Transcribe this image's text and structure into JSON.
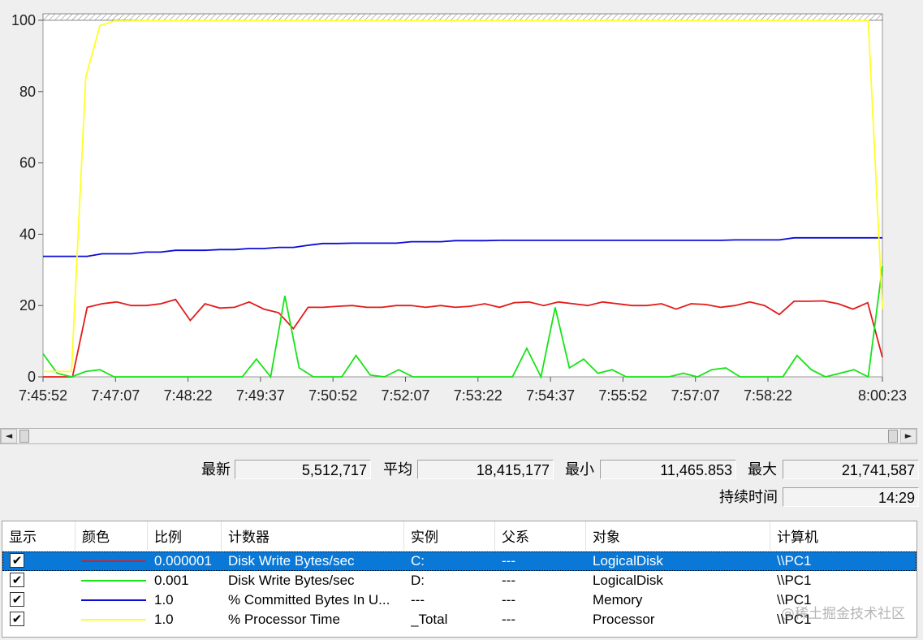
{
  "colors": {
    "red": "#e31b1b",
    "green": "#17e317",
    "blue": "#0b0bd8",
    "yellow": "#ffff22",
    "grid": "#999999",
    "selection": "#0a78d7"
  },
  "chart_data": {
    "type": "line",
    "ylim": [
      0,
      100
    ],
    "y_ticks": [
      "0",
      "20",
      "40",
      "60",
      "80",
      "100"
    ],
    "x_ticks": [
      "7:45:52",
      "7:47:07",
      "7:48:22",
      "7:49:37",
      "7:50:52",
      "7:52:07",
      "7:53:22",
      "7:54:37",
      "7:55:52",
      "7:57:07",
      "7:58:22",
      "8:00:23"
    ],
    "grid": false,
    "series": [
      {
        "color": "red",
        "values": [
          0,
          0,
          0,
          19.5,
          20.5,
          21,
          20,
          20,
          20.5,
          21.7,
          15.8,
          20.5,
          19.3,
          19.5,
          21,
          19,
          18,
          13.5,
          19.5,
          19.5,
          19.8,
          20,
          19.5,
          19.5,
          20,
          20,
          19.5,
          20,
          19.5,
          19.8,
          20.5,
          19.5,
          20.8,
          21,
          20,
          21,
          20.5,
          20,
          21,
          20.5,
          20,
          20,
          20.5,
          19,
          20.5,
          20.3,
          19.5,
          20,
          21,
          20,
          17.5,
          21.2,
          21.2,
          21.3,
          20.5,
          19,
          20.8,
          5.5
        ]
      },
      {
        "color": "green",
        "values": [
          6.5,
          1,
          0,
          1.5,
          2,
          0,
          0,
          0,
          0,
          0,
          0,
          0,
          0,
          0,
          0,
          5,
          0,
          22.7,
          2.5,
          0,
          0,
          0,
          6,
          0.5,
          0,
          2,
          0,
          0,
          0,
          0,
          0,
          0,
          0,
          0,
          8,
          0,
          19.5,
          2.5,
          5,
          1,
          2,
          0,
          0,
          0,
          0,
          1,
          0,
          2,
          2.5,
          0,
          0,
          0,
          0,
          6,
          2,
          0,
          1,
          2,
          0,
          31
        ]
      },
      {
        "color": "blue",
        "values": [
          33.8,
          33.8,
          33.8,
          33.8,
          34.5,
          34.5,
          34.5,
          35,
          35,
          35.5,
          35.5,
          35.5,
          35.7,
          35.7,
          36,
          36,
          36.3,
          36.3,
          36.9,
          37.4,
          37.4,
          37.5,
          37.5,
          37.5,
          37.5,
          37.9,
          37.9,
          37.9,
          38.2,
          38.2,
          38.2,
          38.3,
          38.3,
          38.3,
          38.3,
          38.3,
          38.3,
          38.3,
          38.3,
          38.3,
          38.3,
          38.3,
          38.3,
          38.3,
          38.3,
          38.3,
          38.3,
          38.4,
          38.4,
          38.4,
          38.4,
          39,
          39,
          39,
          39,
          39,
          39,
          39
        ]
      },
      {
        "color": "yellow",
        "values": [
          1.5,
          1.5,
          1.5,
          84,
          98.5,
          99.8,
          99.8,
          99.9,
          99.9,
          99.9,
          99.9,
          99.9,
          99.9,
          99.9,
          99.9,
          99.9,
          99.9,
          99.9,
          99.9,
          99.9,
          99.9,
          99.9,
          99.9,
          99.9,
          99.9,
          99.9,
          99.9,
          99.9,
          99.9,
          99.9,
          99.9,
          99.9,
          99.9,
          99.9,
          99.9,
          99.9,
          99.9,
          99.9,
          99.9,
          99.9,
          99.9,
          99.9,
          99.9,
          99.9,
          99.9,
          99.9,
          99.9,
          99.9,
          99.9,
          99.9,
          99.9,
          99.9,
          99.9,
          99.9,
          99.9,
          99.9,
          99.9,
          99.9,
          99.9,
          19
        ]
      }
    ]
  },
  "scrollbar": {
    "left_arrow": "◄",
    "right_arrow": "►"
  },
  "stats": {
    "latest_label": "最新",
    "latest_value": "5,512,717",
    "avg_label": "平均",
    "avg_value": "18,415,177",
    "min_label": "最小",
    "min_value": "11,465.853",
    "max_label": "最大",
    "max_value": "21,741,587",
    "duration_label": "持续时间",
    "duration_value": "14:29"
  },
  "legend_table": {
    "headers": [
      "显示",
      "颜色",
      "比例",
      "计数器",
      "实例",
      "父系",
      "对象",
      "计算机"
    ],
    "rows": [
      {
        "checked": "✔",
        "color": "red",
        "scale": "0.000001",
        "counter": "Disk Write Bytes/sec",
        "instance": "C:",
        "parent": "---",
        "object": "LogicalDisk",
        "computer": "\\\\PC1",
        "selected": true
      },
      {
        "checked": "✔",
        "color": "green",
        "scale": "0.001",
        "counter": "Disk Write Bytes/sec",
        "instance": "D:",
        "parent": "---",
        "object": "LogicalDisk",
        "computer": "\\\\PC1",
        "selected": false
      },
      {
        "checked": "✔",
        "color": "blue",
        "scale": "1.0",
        "counter": "% Committed Bytes In U...",
        "instance": "---",
        "parent": "---",
        "object": "Memory",
        "computer": "\\\\PC1",
        "selected": false
      },
      {
        "checked": "✔",
        "color": "yellow",
        "scale": "1.0",
        "counter": "% Processor Time",
        "instance": "_Total",
        "parent": "---",
        "object": "Processor",
        "computer": "\\\\PC1",
        "selected": false
      }
    ]
  },
  "watermark": "@稀土掘金技术社区"
}
